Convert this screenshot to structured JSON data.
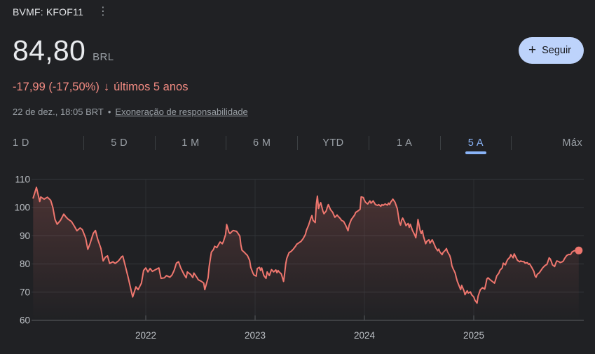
{
  "header": {
    "ticker": "BVMF: KFOF11",
    "menu_glyph": "⋮",
    "price": "84,80",
    "currency": "BRL",
    "change": "-17,99 (-17,50%)",
    "change_arrow": "↓",
    "change_period": "últimos 5 anos",
    "datetime": "22 de dez., 18:05 BRT",
    "separator": "•",
    "disclaimer": "Exoneração de responsabilidade"
  },
  "follow_button": {
    "plus": "+",
    "label": "Seguir"
  },
  "tabs": {
    "items": [
      "1 D",
      "5 D",
      "1 M",
      "6 M",
      "YTD",
      "1 A",
      "5 A",
      "Máx"
    ],
    "selected": "5 A"
  },
  "colors": {
    "background": "#202124",
    "text_primary": "#e8eaed",
    "text_secondary": "#9aa0a6",
    "negative": "#f28b82",
    "accent_blue": "#8ab4f8",
    "follow_bg": "#bdd3fb",
    "follow_text": "#17181b",
    "line": "#ee766e",
    "area_top": "rgba(238,118,110,0.22)",
    "area_bottom": "rgba(238,118,110,0)",
    "grid": "#34373b",
    "grid_vertical": "#2b2e32",
    "axis": "#505356",
    "tick_label": "#bdc1c6"
  },
  "chart_data": {
    "type": "area",
    "series_name": "KFOF11",
    "unit": "BRL",
    "xlabel": "",
    "ylabel": "",
    "ylim": [
      60,
      110
    ],
    "xlim": [
      2020.97,
      2025.99
    ],
    "grid": true,
    "y_ticks": [
      110,
      100,
      90,
      80,
      70,
      60
    ],
    "x_ticks": [
      2022,
      2023,
      2024,
      2025
    ],
    "end_marker": {
      "t": 2025.96,
      "v": 84.8
    },
    "points": [
      [
        2020.97,
        103.4
      ],
      [
        2021.0,
        107.2
      ],
      [
        2021.03,
        102.2
      ],
      [
        2021.04,
        103.8
      ],
      [
        2021.07,
        103.0
      ],
      [
        2021.1,
        103.7
      ],
      [
        2021.13,
        102.6
      ],
      [
        2021.15,
        100.1
      ],
      [
        2021.17,
        95.8
      ],
      [
        2021.19,
        94.1
      ],
      [
        2021.22,
        95.5
      ],
      [
        2021.25,
        97.7
      ],
      [
        2021.27,
        96.7
      ],
      [
        2021.29,
        95.9
      ],
      [
        2021.32,
        95.1
      ],
      [
        2021.35,
        93.2
      ],
      [
        2021.37,
        91.8
      ],
      [
        2021.4,
        92.8
      ],
      [
        2021.42,
        92.2
      ],
      [
        2021.45,
        89.2
      ],
      [
        2021.47,
        85.2
      ],
      [
        2021.49,
        87.2
      ],
      [
        2021.52,
        90.9
      ],
      [
        2021.54,
        91.9
      ],
      [
        2021.56,
        88.8
      ],
      [
        2021.59,
        85.5
      ],
      [
        2021.61,
        81.1
      ],
      [
        2021.63,
        82.4
      ],
      [
        2021.65,
        82.9
      ],
      [
        2021.67,
        80.2
      ],
      [
        2021.7,
        80.8
      ],
      [
        2021.72,
        80.2
      ],
      [
        2021.75,
        81.1
      ],
      [
        2021.78,
        82.6
      ],
      [
        2021.79,
        82.8
      ],
      [
        2021.81,
        79.7
      ],
      [
        2021.84,
        75.1
      ],
      [
        2021.86,
        71.6
      ],
      [
        2021.88,
        68.3
      ],
      [
        2021.91,
        71.9
      ],
      [
        2021.93,
        70.9
      ],
      [
        2021.96,
        73.2
      ],
      [
        2021.98,
        77.7
      ],
      [
        2022.0,
        78.6
      ],
      [
        2022.02,
        77.2
      ],
      [
        2022.04,
        78.4
      ],
      [
        2022.06,
        77.4
      ],
      [
        2022.09,
        78.0
      ],
      [
        2022.12,
        78.6
      ],
      [
        2022.14,
        74.9
      ],
      [
        2022.17,
        75.1
      ],
      [
        2022.19,
        75.9
      ],
      [
        2022.22,
        75.3
      ],
      [
        2022.24,
        76.1
      ],
      [
        2022.26,
        77.8
      ],
      [
        2022.28,
        80.3
      ],
      [
        2022.3,
        80.8
      ],
      [
        2022.32,
        78.6
      ],
      [
        2022.35,
        76.3
      ],
      [
        2022.37,
        75.1
      ],
      [
        2022.38,
        77.2
      ],
      [
        2022.41,
        76.3
      ],
      [
        2022.43,
        75.2
      ],
      [
        2022.44,
        76.8
      ],
      [
        2022.47,
        75.1
      ],
      [
        2022.48,
        74.4
      ],
      [
        2022.51,
        73.8
      ],
      [
        2022.53,
        73.2
      ],
      [
        2022.54,
        70.9
      ],
      [
        2022.57,
        75.1
      ],
      [
        2022.58,
        79.2
      ],
      [
        2022.6,
        84.2
      ],
      [
        2022.62,
        85.2
      ],
      [
        2022.63,
        86.3
      ],
      [
        2022.65,
        85.8
      ],
      [
        2022.67,
        87.2
      ],
      [
        2022.68,
        87.8
      ],
      [
        2022.7,
        87.2
      ],
      [
        2022.71,
        88.0
      ],
      [
        2022.73,
        90.5
      ],
      [
        2022.74,
        94.0
      ],
      [
        2022.76,
        91.3
      ],
      [
        2022.77,
        90.8
      ],
      [
        2022.79,
        91.6
      ],
      [
        2022.8,
        91.9
      ],
      [
        2022.83,
        91.6
      ],
      [
        2022.84,
        91.1
      ],
      [
        2022.86,
        89.9
      ],
      [
        2022.87,
        86.8
      ],
      [
        2022.88,
        84.9
      ],
      [
        2022.9,
        84.2
      ],
      [
        2022.92,
        83.4
      ],
      [
        2022.93,
        83.0
      ],
      [
        2022.95,
        81.3
      ],
      [
        2022.96,
        78.8
      ],
      [
        2022.98,
        76.8
      ],
      [
        2022.99,
        76.1
      ],
      [
        2023.01,
        75.7
      ],
      [
        2023.02,
        78.4
      ],
      [
        2023.04,
        78.8
      ],
      [
        2023.05,
        77.7
      ],
      [
        2023.06,
        78.6
      ],
      [
        2023.08,
        75.9
      ],
      [
        2023.1,
        74.9
      ],
      [
        2023.11,
        77.2
      ],
      [
        2023.13,
        75.9
      ],
      [
        2023.15,
        78.0
      ],
      [
        2023.17,
        77.2
      ],
      [
        2023.19,
        77.9
      ],
      [
        2023.2,
        76.9
      ],
      [
        2023.21,
        77.7
      ],
      [
        2023.22,
        77.2
      ],
      [
        2023.24,
        76.5
      ],
      [
        2023.26,
        73.8
      ],
      [
        2023.27,
        76.5
      ],
      [
        2023.28,
        80.0
      ],
      [
        2023.29,
        82.0
      ],
      [
        2023.31,
        84.0
      ],
      [
        2023.33,
        84.5
      ],
      [
        2023.35,
        85.3
      ],
      [
        2023.37,
        86.3
      ],
      [
        2023.38,
        87.0
      ],
      [
        2023.4,
        87.5
      ],
      [
        2023.42,
        88.0
      ],
      [
        2023.44,
        89.0
      ],
      [
        2023.46,
        90.5
      ],
      [
        2023.47,
        92.0
      ],
      [
        2023.49,
        93.8
      ],
      [
        2023.51,
        96.3
      ],
      [
        2023.52,
        97.2
      ],
      [
        2023.53,
        95.5
      ],
      [
        2023.55,
        94.7
      ],
      [
        2023.56,
        101.3
      ],
      [
        2023.57,
        104.1
      ],
      [
        2023.58,
        99.7
      ],
      [
        2023.59,
        100.9
      ],
      [
        2023.6,
        101.8
      ],
      [
        2023.62,
        98.8
      ],
      [
        2023.63,
        97.8
      ],
      [
        2023.65,
        98.8
      ],
      [
        2023.66,
        100.1
      ],
      [
        2023.67,
        101.1
      ],
      [
        2023.69,
        99.3
      ],
      [
        2023.71,
        98.3
      ],
      [
        2023.72,
        97.4
      ],
      [
        2023.73,
        96.6
      ],
      [
        2023.75,
        97.4
      ],
      [
        2023.76,
        96.9
      ],
      [
        2023.78,
        96.1
      ],
      [
        2023.79,
        95.5
      ],
      [
        2023.81,
        95.1
      ],
      [
        2023.83,
        93.6
      ],
      [
        2023.85,
        91.8
      ],
      [
        2023.86,
        93.8
      ],
      [
        2023.88,
        95.8
      ],
      [
        2023.89,
        96.3
      ],
      [
        2023.91,
        97.4
      ],
      [
        2023.92,
        98.3
      ],
      [
        2023.94,
        98.8
      ],
      [
        2023.96,
        99.4
      ],
      [
        2023.97,
        103.8
      ],
      [
        2023.99,
        103.6
      ],
      [
        2024.0,
        102.6
      ],
      [
        2024.01,
        101.9
      ],
      [
        2024.03,
        101.3
      ],
      [
        2024.04,
        101.9
      ],
      [
        2024.05,
        102.4
      ],
      [
        2024.06,
        101.6
      ],
      [
        2024.08,
        102.4
      ],
      [
        2024.09,
        101.8
      ],
      [
        2024.1,
        101.1
      ],
      [
        2024.12,
        100.8
      ],
      [
        2024.13,
        101.1
      ],
      [
        2024.15,
        100.5
      ],
      [
        2024.16,
        101.1
      ],
      [
        2024.17,
        100.8
      ],
      [
        2024.19,
        101.3
      ],
      [
        2024.21,
        100.9
      ],
      [
        2024.22,
        101.6
      ],
      [
        2024.23,
        101.1
      ],
      [
        2024.24,
        101.9
      ],
      [
        2024.26,
        103.0
      ],
      [
        2024.28,
        101.9
      ],
      [
        2024.29,
        100.8
      ],
      [
        2024.3,
        99.7
      ],
      [
        2024.31,
        97.2
      ],
      [
        2024.32,
        94.7
      ],
      [
        2024.33,
        93.8
      ],
      [
        2024.34,
        95.5
      ],
      [
        2024.35,
        96.3
      ],
      [
        2024.37,
        94.7
      ],
      [
        2024.38,
        93.6
      ],
      [
        2024.4,
        94.4
      ],
      [
        2024.41,
        93.0
      ],
      [
        2024.42,
        94.1
      ],
      [
        2024.44,
        91.9
      ],
      [
        2024.46,
        90.3
      ],
      [
        2024.47,
        89.3
      ],
      [
        2024.48,
        92.2
      ],
      [
        2024.49,
        95.8
      ],
      [
        2024.51,
        91.8
      ],
      [
        2024.52,
        90.8
      ],
      [
        2024.53,
        91.9
      ],
      [
        2024.54,
        89.9
      ],
      [
        2024.56,
        87.2
      ],
      [
        2024.57,
        88.0
      ],
      [
        2024.59,
        88.6
      ],
      [
        2024.6,
        87.4
      ],
      [
        2024.62,
        88.6
      ],
      [
        2024.64,
        86.9
      ],
      [
        2024.65,
        85.9
      ],
      [
        2024.67,
        84.7
      ],
      [
        2024.68,
        85.3
      ],
      [
        2024.69,
        84.3
      ],
      [
        2024.71,
        83.3
      ],
      [
        2024.72,
        84.1
      ],
      [
        2024.74,
        84.9
      ],
      [
        2024.75,
        85.5
      ],
      [
        2024.76,
        84.3
      ],
      [
        2024.78,
        83.0
      ],
      [
        2024.79,
        81.8
      ],
      [
        2024.8,
        79.4
      ],
      [
        2024.81,
        78.4
      ],
      [
        2024.83,
        76.8
      ],
      [
        2024.84,
        75.2
      ],
      [
        2024.85,
        73.8
      ],
      [
        2024.87,
        71.9
      ],
      [
        2024.88,
        70.9
      ],
      [
        2024.89,
        72.4
      ],
      [
        2024.91,
        70.5
      ],
      [
        2024.92,
        69.1
      ],
      [
        2024.94,
        70.5
      ],
      [
        2024.95,
        69.7
      ],
      [
        2024.97,
        70.1
      ],
      [
        2024.98,
        69.1
      ],
      [
        2025.0,
        68.3
      ],
      [
        2025.01,
        67.2
      ],
      [
        2025.03,
        66.1
      ],
      [
        2025.04,
        68.6
      ],
      [
        2025.06,
        70.9
      ],
      [
        2025.08,
        71.6
      ],
      [
        2025.1,
        71.1
      ],
      [
        2025.11,
        72.8
      ],
      [
        2025.12,
        74.7
      ],
      [
        2025.13,
        75.1
      ],
      [
        2025.15,
        74.4
      ],
      [
        2025.17,
        73.8
      ],
      [
        2025.19,
        73.2
      ],
      [
        2025.2,
        74.4
      ],
      [
        2025.21,
        75.8
      ],
      [
        2025.23,
        76.8
      ],
      [
        2025.24,
        77.8
      ],
      [
        2025.26,
        78.6
      ],
      [
        2025.27,
        80.3
      ],
      [
        2025.29,
        79.7
      ],
      [
        2025.3,
        80.8
      ],
      [
        2025.31,
        81.6
      ],
      [
        2025.33,
        82.4
      ],
      [
        2025.34,
        83.3
      ],
      [
        2025.36,
        82.2
      ],
      [
        2025.37,
        83.6
      ],
      [
        2025.38,
        82.8
      ],
      [
        2025.4,
        81.3
      ],
      [
        2025.42,
        80.8
      ],
      [
        2025.43,
        81.1
      ],
      [
        2025.44,
        80.9
      ],
      [
        2025.46,
        80.8
      ],
      [
        2025.47,
        80.3
      ],
      [
        2025.49,
        80.5
      ],
      [
        2025.5,
        79.9
      ],
      [
        2025.51,
        80.1
      ],
      [
        2025.53,
        78.8
      ],
      [
        2025.55,
        77.4
      ],
      [
        2025.56,
        75.8
      ],
      [
        2025.57,
        75.3
      ],
      [
        2025.58,
        76.3
      ],
      [
        2025.6,
        76.9
      ],
      [
        2025.62,
        78.0
      ],
      [
        2025.63,
        78.6
      ],
      [
        2025.65,
        79.4
      ],
      [
        2025.67,
        79.9
      ],
      [
        2025.69,
        82.2
      ],
      [
        2025.7,
        81.8
      ],
      [
        2025.71,
        80.8
      ],
      [
        2025.72,
        79.7
      ],
      [
        2025.74,
        79.1
      ],
      [
        2025.75,
        80.3
      ],
      [
        2025.76,
        81.1
      ],
      [
        2025.78,
        80.8
      ],
      [
        2025.79,
        80.5
      ],
      [
        2025.81,
        80.8
      ],
      [
        2025.82,
        81.1
      ],
      [
        2025.83,
        81.9
      ],
      [
        2025.85,
        83.0
      ],
      [
        2025.87,
        83.4
      ],
      [
        2025.88,
        83.3
      ],
      [
        2025.89,
        83.6
      ],
      [
        2025.9,
        84.3
      ],
      [
        2025.92,
        84.7
      ],
      [
        2025.94,
        84.9
      ],
      [
        2025.96,
        84.8
      ]
    ]
  }
}
